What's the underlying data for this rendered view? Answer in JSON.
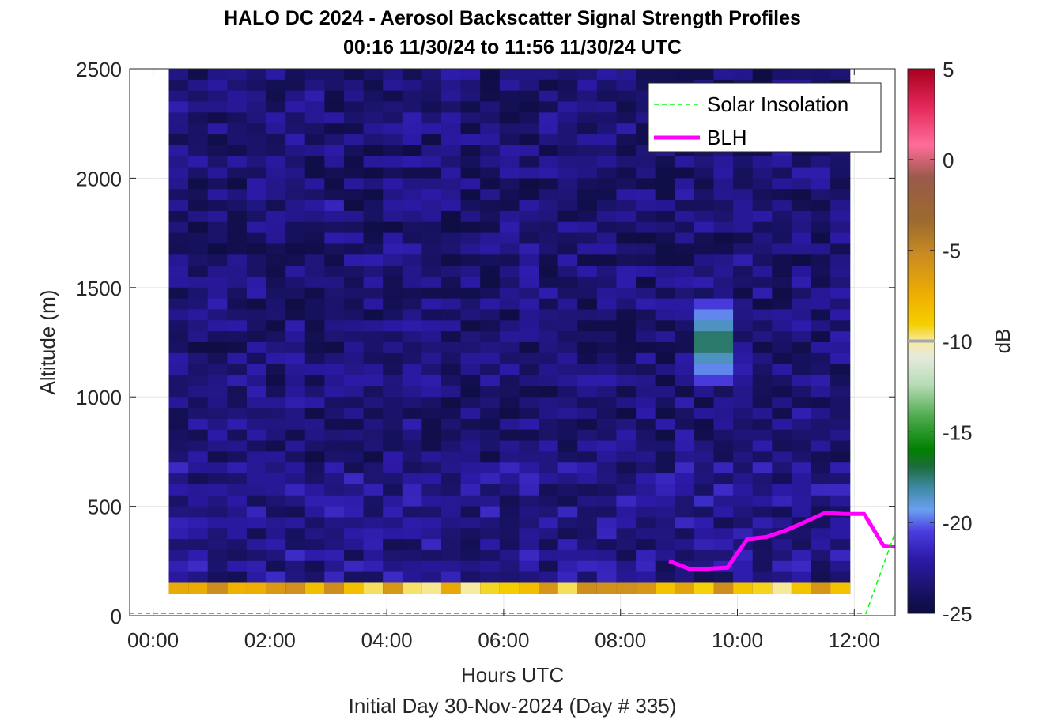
{
  "chart_data": {
    "type": "heatmap",
    "title": "HALO DC 2024 - Aerosol Backscatter Signal Strength Profiles",
    "subtitle": "00:16 11/30/24 to 11:56 11/30/24  UTC",
    "xlabel": "Hours UTC",
    "xlabel2": "Initial Day 30-Nov-2024 (Day # 335)",
    "ylabel": "Altitude (m)",
    "xlim": [
      -0.4,
      12.7
    ],
    "ylim": [
      0,
      2500
    ],
    "x_ticks": [
      0,
      2,
      4,
      6,
      8,
      10,
      12
    ],
    "x_tick_labels": [
      "00:00",
      "02:00",
      "04:00",
      "06:00",
      "08:00",
      "10:00",
      "12:00"
    ],
    "y_ticks": [
      0,
      500,
      1000,
      1500,
      2000,
      2500
    ],
    "y_tick_labels": [
      "0",
      "500",
      "1000",
      "1500",
      "2000",
      "2500"
    ],
    "grid": true,
    "colorbar": {
      "label": "dB",
      "range": [
        -25,
        5
      ],
      "ticks": [
        5,
        0,
        -5,
        -10,
        -15,
        -20,
        -25
      ],
      "tick_labels": [
        "5",
        "0",
        "-5",
        "-10",
        "-15",
        "-20",
        "-25"
      ]
    },
    "heatmap": {
      "time_start_hours": 0.27,
      "time_end_hours": 11.93,
      "column_step_hours": 0.333,
      "altitude_bin_top_m": 2500,
      "altitude_bin_bottom_m": 125,
      "altitude_bin_m": 50,
      "typical_value_db": -23,
      "features": [
        {
          "name": "aerosol layer",
          "time_hours": [
            9.2,
            9.8
          ],
          "altitude_m": [
            1050,
            1450
          ],
          "peak_db": -17
        },
        {
          "name": "isolated bin",
          "time_hours": [
            3.0,
            3.3
          ],
          "altitude_m": [
            1850,
            1900
          ],
          "peak_db": -21
        },
        {
          "name": "surface-noise row",
          "altitude_m": [
            100,
            150
          ],
          "values_db_range": [
            -9,
            -5
          ]
        }
      ]
    },
    "legend": {
      "placement": "top-right",
      "entries": [
        "Solar Insolation",
        "BLH"
      ]
    },
    "series": [
      {
        "name": "BLH",
        "color": "#ff00ff",
        "x": [
          8.83,
          9.17,
          9.5,
          9.83,
          10.17,
          10.5,
          10.83,
          11.17,
          11.5,
          11.83,
          12.17,
          12.5,
          12.7
        ],
        "y": [
          250,
          215,
          215,
          220,
          350,
          360,
          390,
          430,
          470,
          465,
          465,
          320,
          315
        ]
      },
      {
        "name": "Solar Insolation",
        "color": "#00ff00",
        "style": "dashed",
        "x": [
          -0.4,
          12.2,
          12.7
        ],
        "y": [
          10,
          10,
          380
        ]
      }
    ]
  }
}
